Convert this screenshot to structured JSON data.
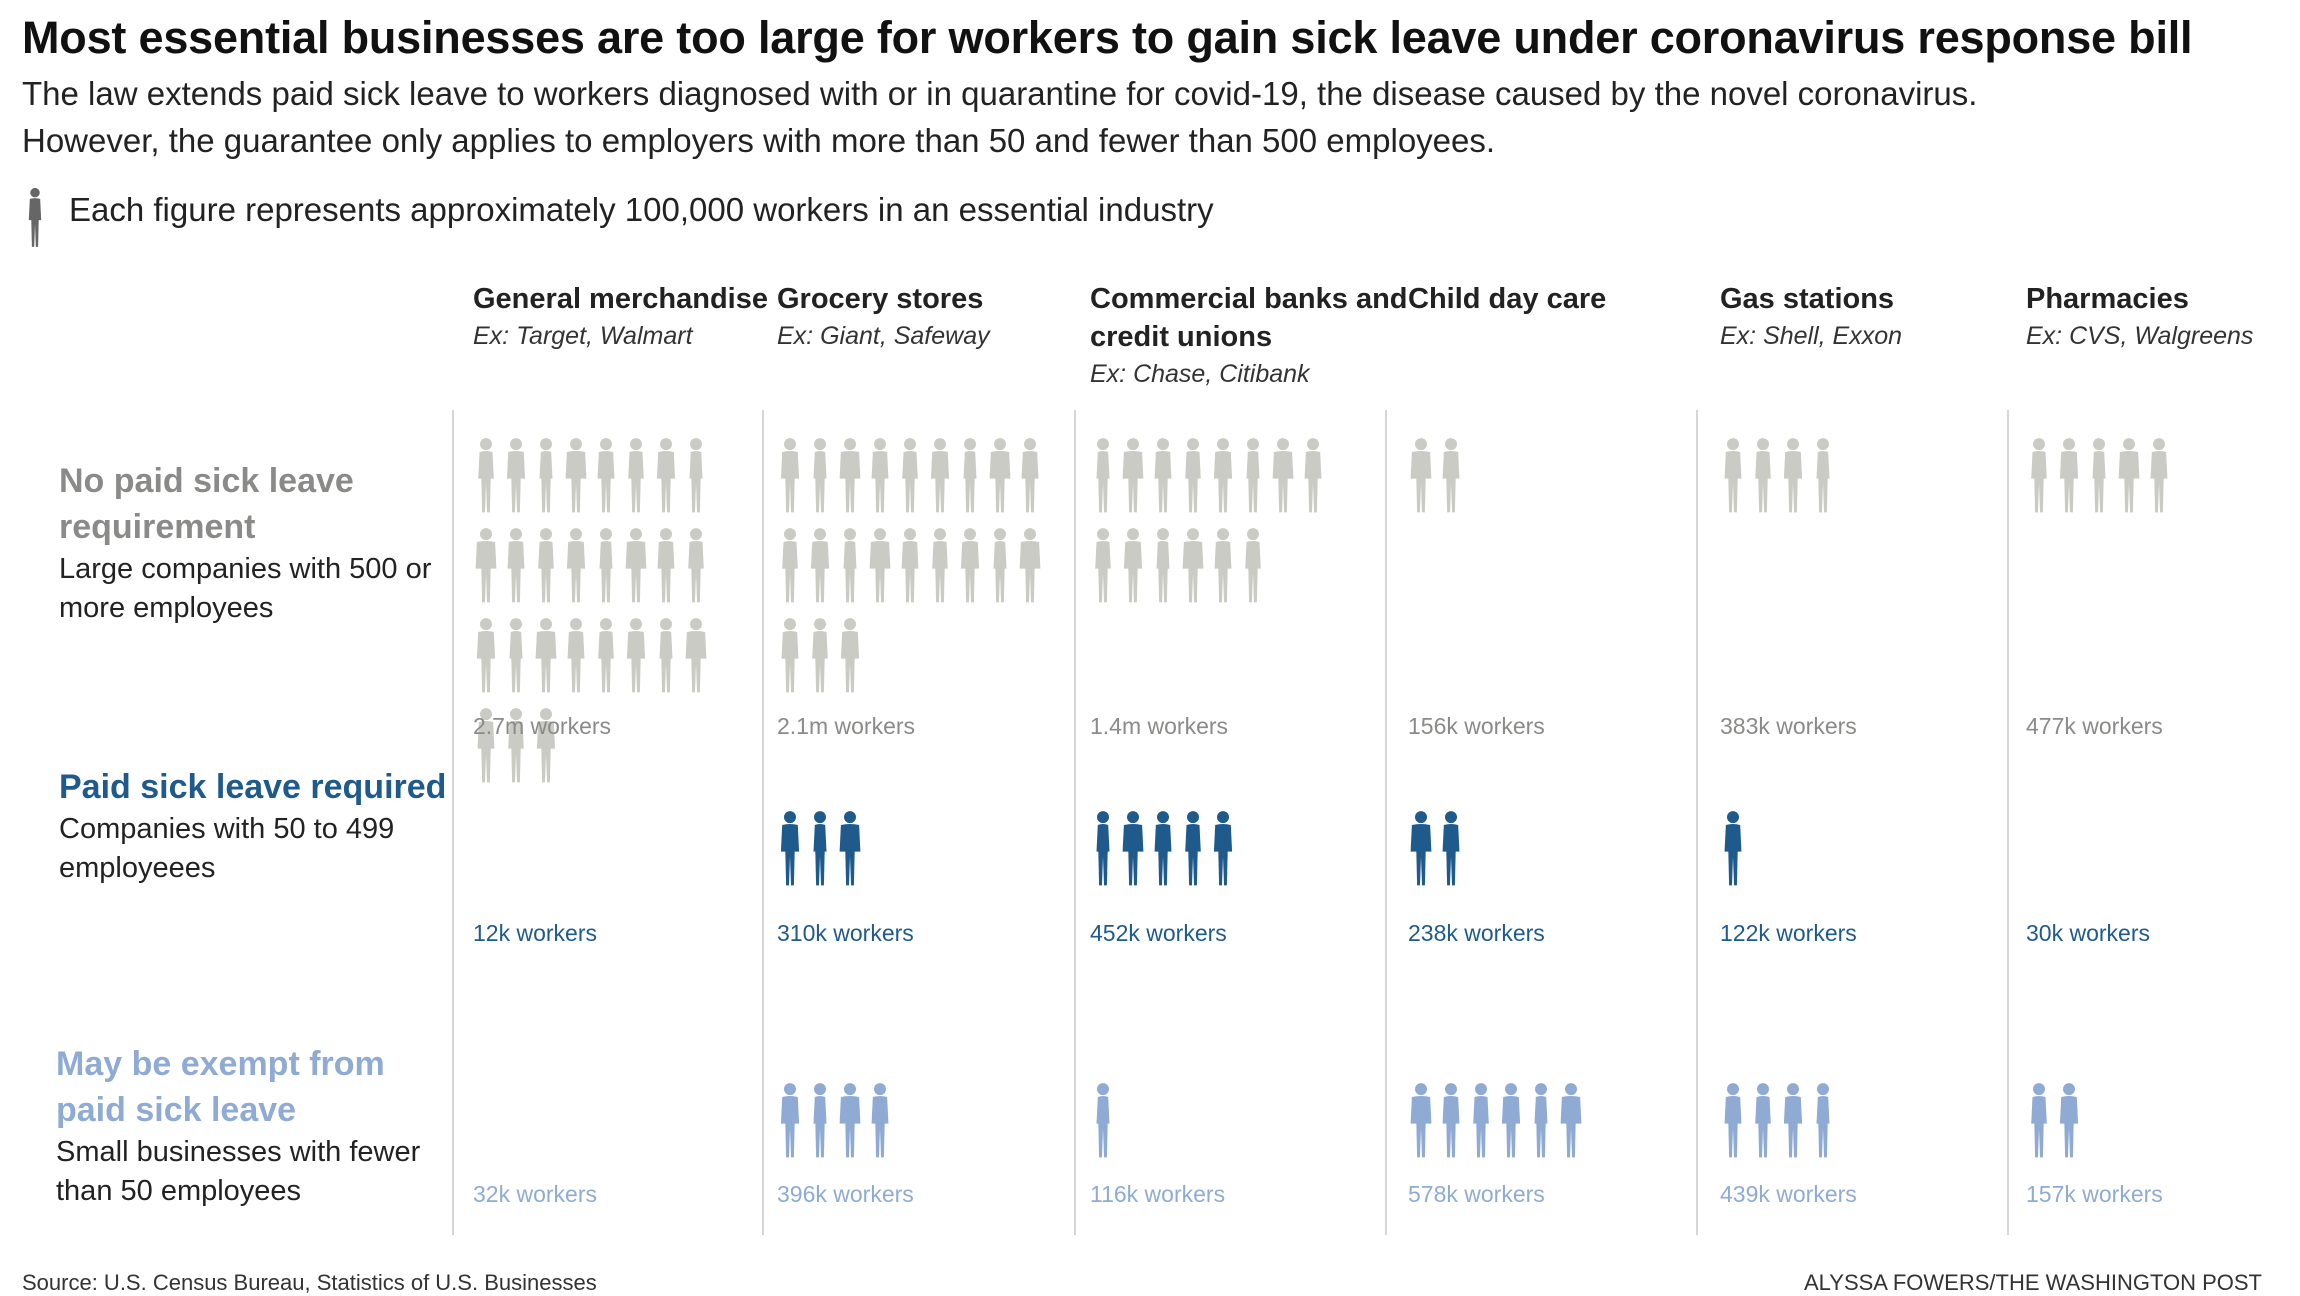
{
  "title": "Most essential businesses are too large for workers to gain sick leave under coronavirus response bill",
  "subtitle_line1": "The law extends paid sick leave to workers diagnosed with or in quarantine for covid-19, the disease caused by the novel coronavirus.",
  "subtitle_line2": "However, the guarantee only applies to employers with more than 50 and fewer than 500 employees.",
  "legend_text": "Each figure represents approximately 100,000 workers in an essential industry",
  "source": "Source: U.S. Census Bureau, Statistics of U.S. Businesses",
  "credit": "ALYSSA FOWERS/THE WASHINGTON POST",
  "colors": {
    "no_leave": "#cbcbc5",
    "no_leave_text": "#8a8a88",
    "required": "#1e5a8c",
    "exempt": "#8fabd4",
    "icon_legend": "#666666"
  },
  "chart_data": {
    "type": "pictogram",
    "unit_per_figure": 100000,
    "rows": [
      {
        "key": "no_leave",
        "title": "No paid sick leave requirement",
        "description": "Large companies with 500 or more employees"
      },
      {
        "key": "required",
        "title": "Paid sick leave required",
        "description": "Companies with 50 to 499 employeees"
      },
      {
        "key": "exempt",
        "title": "May be exempt from paid sick leave",
        "description": "Small businesses with fewer than 50 employees"
      }
    ],
    "industries": [
      {
        "name": "General merchandise",
        "example": "Ex: Target, Walmart",
        "no_leave": {
          "workers": 2700000,
          "label": "2.7m workers"
        },
        "required": {
          "workers": 12000,
          "label": "12k workers"
        },
        "exempt": {
          "workers": 32000,
          "label": "32k workers"
        }
      },
      {
        "name": "Grocery stores",
        "example": "Ex: Giant, Safeway",
        "no_leave": {
          "workers": 2100000,
          "label": "2.1m workers"
        },
        "required": {
          "workers": 310000,
          "label": "310k workers"
        },
        "exempt": {
          "workers": 396000,
          "label": "396k workers"
        }
      },
      {
        "name": "Commercial banks and credit unions",
        "example": "Ex: Chase, Citibank",
        "no_leave": {
          "workers": 1400000,
          "label": "1.4m workers"
        },
        "required": {
          "workers": 452000,
          "label": "452k workers"
        },
        "exempt": {
          "workers": 116000,
          "label": "116k workers"
        }
      },
      {
        "name": "Child day care",
        "example": "",
        "no_leave": {
          "workers": 156000,
          "label": "156k workers"
        },
        "required": {
          "workers": 238000,
          "label": "238k workers"
        },
        "exempt": {
          "workers": 578000,
          "label": "578k workers"
        }
      },
      {
        "name": "Gas stations",
        "example": "Ex: Shell, Exxon",
        "no_leave": {
          "workers": 383000,
          "label": "383k workers"
        },
        "required": {
          "workers": 122000,
          "label": "122k workers"
        },
        "exempt": {
          "workers": 439000,
          "label": "439k workers"
        }
      },
      {
        "name": "Pharmacies",
        "example": "Ex: CVS, Walgreens",
        "no_leave": {
          "workers": 477000,
          "label": "477k workers"
        },
        "required": {
          "workers": 30000,
          "label": "30k workers"
        },
        "exempt": {
          "workers": 157000,
          "label": "157k workers"
        }
      }
    ]
  }
}
